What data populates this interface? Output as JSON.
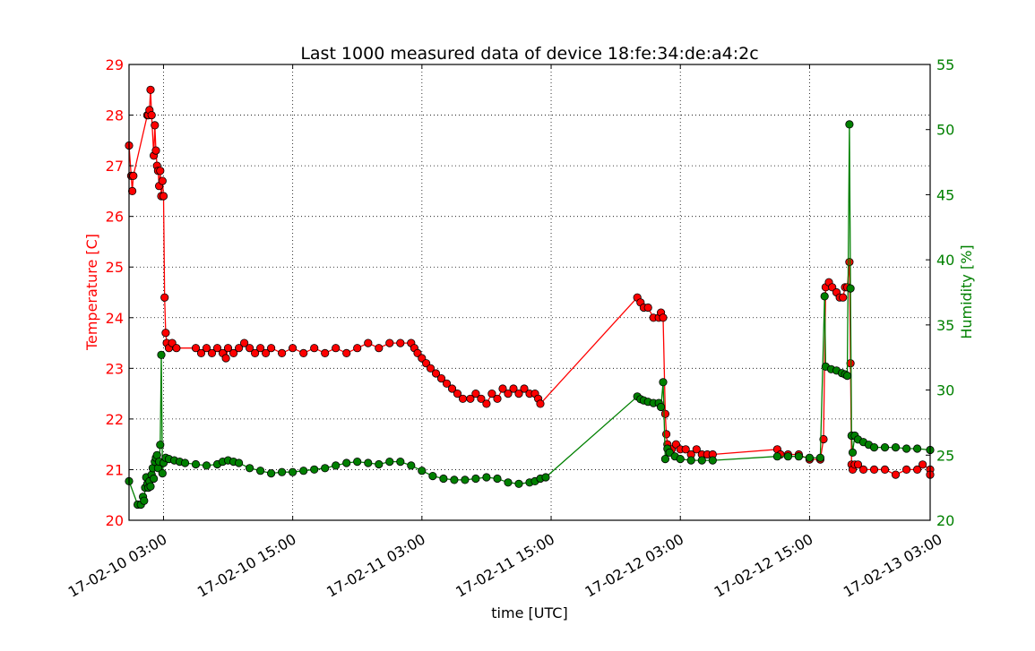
{
  "chart_data": {
    "type": "line",
    "title": "Last 1000 measured data of device 18:fe:34:de:a4:2c",
    "xlabel": "time [UTC]",
    "ylabel_left": "Temperature [C]",
    "ylabel_right": "Humidity [%]",
    "colors": {
      "temperature": "#ff0000",
      "humidity": "#008000",
      "marker_edge": "#000000"
    },
    "grid": true,
    "x_axis": {
      "unit": "hours since 17-02-10 00:00 UTC",
      "range": [
        -0.2,
        74.2
      ],
      "ticks": [
        3,
        15,
        27,
        39,
        51,
        63
      ],
      "tick_labels": [
        "17-02-10 03:00",
        "17-02-10 15:00",
        "17-02-11 03:00",
        "17-02-11 15:00",
        "17-02-12 03:00",
        "17-02-12 15:00",
        "17-02-13 03:00"
      ],
      "tick_positions_hours": [
        3,
        15,
        27,
        39,
        51,
        63,
        75
      ]
    },
    "ylim_left": [
      20,
      29
    ],
    "yticks_left": [
      "20",
      "21",
      "22",
      "23",
      "24",
      "25",
      "26",
      "27",
      "28",
      "29"
    ],
    "ylim_right": [
      20,
      55
    ],
    "yticks_right": [
      "20",
      "25",
      "30",
      "35",
      "40",
      "45",
      "50",
      "55"
    ],
    "series": [
      {
        "name": "Temperature [C]",
        "axis": "left",
        "points": [
          [
            -0.2,
            27.4
          ],
          [
            0.0,
            26.8
          ],
          [
            0.1,
            26.5
          ],
          [
            0.2,
            26.8
          ],
          [
            1.5,
            28.0
          ],
          [
            1.6,
            28.0
          ],
          [
            1.7,
            28.1
          ],
          [
            1.8,
            28.5
          ],
          [
            1.9,
            28.0
          ],
          [
            2.1,
            27.2
          ],
          [
            2.2,
            27.8
          ],
          [
            2.3,
            27.3
          ],
          [
            2.4,
            27.0
          ],
          [
            2.5,
            26.9
          ],
          [
            2.6,
            26.6
          ],
          [
            2.7,
            26.9
          ],
          [
            2.8,
            26.4
          ],
          [
            2.9,
            26.7
          ],
          [
            3.0,
            26.4
          ],
          [
            3.1,
            24.4
          ],
          [
            3.2,
            23.7
          ],
          [
            3.3,
            23.5
          ],
          [
            3.5,
            23.4
          ],
          [
            3.8,
            23.5
          ],
          [
            4.2,
            23.4
          ],
          [
            6.0,
            23.4
          ],
          [
            6.5,
            23.3
          ],
          [
            7.0,
            23.4
          ],
          [
            7.5,
            23.3
          ],
          [
            8.0,
            23.4
          ],
          [
            8.5,
            23.3
          ],
          [
            8.8,
            23.2
          ],
          [
            9.0,
            23.4
          ],
          [
            9.5,
            23.3
          ],
          [
            10.0,
            23.4
          ],
          [
            10.5,
            23.5
          ],
          [
            11.0,
            23.4
          ],
          [
            11.5,
            23.3
          ],
          [
            12.0,
            23.4
          ],
          [
            12.5,
            23.3
          ],
          [
            13.0,
            23.4
          ],
          [
            14.0,
            23.3
          ],
          [
            15.0,
            23.4
          ],
          [
            16.0,
            23.3
          ],
          [
            17.0,
            23.4
          ],
          [
            18.0,
            23.3
          ],
          [
            19.0,
            23.4
          ],
          [
            20.0,
            23.3
          ],
          [
            21.0,
            23.4
          ],
          [
            22.0,
            23.5
          ],
          [
            23.0,
            23.4
          ],
          [
            24.0,
            23.5
          ],
          [
            25.0,
            23.5
          ],
          [
            26.0,
            23.5
          ],
          [
            26.3,
            23.4
          ],
          [
            26.6,
            23.3
          ],
          [
            27.0,
            23.2
          ],
          [
            27.4,
            23.1
          ],
          [
            27.8,
            23.0
          ],
          [
            28.3,
            22.9
          ],
          [
            28.8,
            22.8
          ],
          [
            29.3,
            22.7
          ],
          [
            29.8,
            22.6
          ],
          [
            30.3,
            22.5
          ],
          [
            30.8,
            22.4
          ],
          [
            31.5,
            22.4
          ],
          [
            32.0,
            22.5
          ],
          [
            32.5,
            22.4
          ],
          [
            33.0,
            22.3
          ],
          [
            33.5,
            22.5
          ],
          [
            34.0,
            22.4
          ],
          [
            34.5,
            22.6
          ],
          [
            35.0,
            22.5
          ],
          [
            35.5,
            22.6
          ],
          [
            36.0,
            22.5
          ],
          [
            36.5,
            22.6
          ],
          [
            37.0,
            22.5
          ],
          [
            37.5,
            22.5
          ],
          [
            37.8,
            22.4
          ],
          [
            38.0,
            22.3
          ],
          [
            47.0,
            24.4
          ],
          [
            47.3,
            24.3
          ],
          [
            47.6,
            24.2
          ],
          [
            48.0,
            24.2
          ],
          [
            48.5,
            24.0
          ],
          [
            49.0,
            24.0
          ],
          [
            49.2,
            24.1
          ],
          [
            49.4,
            24.0
          ],
          [
            49.6,
            22.1
          ],
          [
            49.7,
            21.7
          ],
          [
            49.8,
            21.5
          ],
          [
            50.2,
            21.4
          ],
          [
            50.6,
            21.5
          ],
          [
            51.0,
            21.4
          ],
          [
            51.5,
            21.4
          ],
          [
            52.0,
            21.3
          ],
          [
            52.5,
            21.4
          ],
          [
            53.0,
            21.3
          ],
          [
            53.5,
            21.3
          ],
          [
            54.0,
            21.3
          ],
          [
            60.0,
            21.4
          ],
          [
            60.3,
            21.3
          ],
          [
            61.0,
            21.3
          ],
          [
            62.0,
            21.3
          ],
          [
            63.0,
            21.2
          ],
          [
            64.0,
            21.2
          ],
          [
            64.3,
            21.6
          ],
          [
            64.5,
            24.6
          ],
          [
            64.8,
            24.7
          ],
          [
            65.1,
            24.6
          ],
          [
            65.5,
            24.5
          ],
          [
            65.8,
            24.4
          ],
          [
            66.1,
            24.4
          ],
          [
            66.3,
            24.6
          ],
          [
            66.5,
            24.6
          ],
          [
            66.7,
            25.1
          ],
          [
            66.8,
            23.1
          ],
          [
            66.9,
            21.1
          ],
          [
            67.0,
            21.0
          ],
          [
            67.2,
            21.1
          ],
          [
            67.5,
            21.1
          ],
          [
            68.0,
            21.0
          ],
          [
            69.0,
            21.0
          ],
          [
            70.0,
            21.0
          ],
          [
            71.0,
            20.9
          ],
          [
            72.0,
            21.0
          ],
          [
            73.0,
            21.0
          ],
          [
            73.5,
            21.1
          ],
          [
            74.2,
            21.0
          ],
          [
            74.2,
            20.9
          ]
        ]
      },
      {
        "name": "Humidity [%]",
        "axis": "right",
        "points": [
          [
            -0.2,
            23.0
          ],
          [
            0.6,
            21.2
          ],
          [
            0.9,
            21.2
          ],
          [
            1.1,
            21.8
          ],
          [
            1.2,
            21.5
          ],
          [
            1.3,
            22.5
          ],
          [
            1.4,
            23.3
          ],
          [
            1.5,
            22.8
          ],
          [
            1.6,
            22.5
          ],
          [
            1.7,
            23.0
          ],
          [
            1.8,
            22.6
          ],
          [
            1.9,
            23.5
          ],
          [
            2.0,
            24.0
          ],
          [
            2.1,
            23.2
          ],
          [
            2.2,
            24.5
          ],
          [
            2.3,
            24.8
          ],
          [
            2.4,
            25.0
          ],
          [
            2.5,
            24.0
          ],
          [
            2.6,
            24.5
          ],
          [
            2.7,
            25.8
          ],
          [
            2.8,
            32.7
          ],
          [
            2.9,
            23.6
          ],
          [
            3.0,
            24.4
          ],
          [
            3.2,
            24.8
          ],
          [
            3.5,
            24.7
          ],
          [
            4.0,
            24.6
          ],
          [
            4.5,
            24.5
          ],
          [
            5.0,
            24.4
          ],
          [
            6.0,
            24.3
          ],
          [
            7.0,
            24.2
          ],
          [
            8.0,
            24.3
          ],
          [
            8.5,
            24.5
          ],
          [
            9.0,
            24.6
          ],
          [
            9.5,
            24.5
          ],
          [
            10.0,
            24.4
          ],
          [
            11.0,
            24.0
          ],
          [
            12.0,
            23.8
          ],
          [
            13.0,
            23.6
          ],
          [
            14.0,
            23.7
          ],
          [
            15.0,
            23.7
          ],
          [
            16.0,
            23.8
          ],
          [
            17.0,
            23.9
          ],
          [
            18.0,
            24.0
          ],
          [
            19.0,
            24.2
          ],
          [
            20.0,
            24.4
          ],
          [
            21.0,
            24.5
          ],
          [
            22.0,
            24.4
          ],
          [
            23.0,
            24.3
          ],
          [
            24.0,
            24.5
          ],
          [
            25.0,
            24.5
          ],
          [
            26.0,
            24.2
          ],
          [
            27.0,
            23.8
          ],
          [
            28.0,
            23.4
          ],
          [
            29.0,
            23.2
          ],
          [
            30.0,
            23.1
          ],
          [
            31.0,
            23.1
          ],
          [
            32.0,
            23.2
          ],
          [
            33.0,
            23.3
          ],
          [
            34.0,
            23.2
          ],
          [
            35.0,
            22.9
          ],
          [
            36.0,
            22.8
          ],
          [
            37.0,
            22.9
          ],
          [
            37.5,
            23.0
          ],
          [
            38.0,
            23.2
          ],
          [
            38.5,
            23.3
          ],
          [
            47.0,
            29.5
          ],
          [
            47.3,
            29.3
          ],
          [
            47.6,
            29.2
          ],
          [
            48.0,
            29.1
          ],
          [
            48.5,
            29.0
          ],
          [
            49.0,
            29.0
          ],
          [
            49.2,
            28.7
          ],
          [
            49.4,
            30.6
          ],
          [
            49.6,
            24.7
          ],
          [
            49.8,
            25.5
          ],
          [
            50.0,
            25.2
          ],
          [
            50.5,
            24.9
          ],
          [
            51.0,
            24.7
          ],
          [
            52.0,
            24.6
          ],
          [
            53.0,
            24.6
          ],
          [
            54.0,
            24.6
          ],
          [
            60.0,
            24.9
          ],
          [
            61.0,
            24.9
          ],
          [
            62.0,
            24.9
          ],
          [
            63.0,
            24.8
          ],
          [
            64.0,
            24.8
          ],
          [
            64.4,
            37.2
          ],
          [
            64.5,
            31.8
          ],
          [
            65.0,
            31.6
          ],
          [
            65.5,
            31.5
          ],
          [
            66.0,
            31.3
          ],
          [
            66.3,
            31.2
          ],
          [
            66.5,
            31.1
          ],
          [
            66.7,
            50.4
          ],
          [
            66.8,
            37.8
          ],
          [
            66.9,
            26.5
          ],
          [
            67.0,
            25.2
          ],
          [
            67.2,
            26.5
          ],
          [
            67.5,
            26.2
          ],
          [
            68.0,
            26.0
          ],
          [
            68.5,
            25.8
          ],
          [
            69.0,
            25.6
          ],
          [
            70.0,
            25.6
          ],
          [
            71.0,
            25.6
          ],
          [
            72.0,
            25.5
          ],
          [
            73.0,
            25.5
          ],
          [
            74.2,
            25.4
          ]
        ]
      }
    ]
  }
}
